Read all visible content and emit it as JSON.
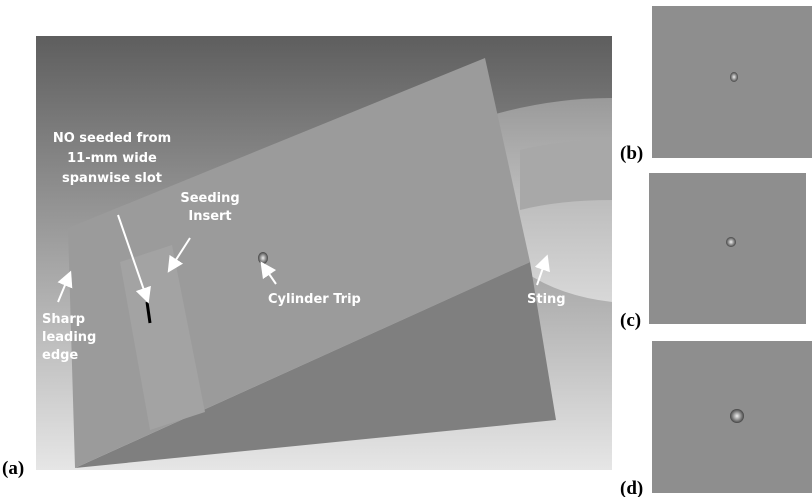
{
  "annotations": {
    "slot": [
      "NO seeded from",
      "11-mm wide",
      "spanwise slot"
    ],
    "insert": [
      "Seeding",
      "Insert"
    ],
    "trip": [
      "Cylinder Trip"
    ],
    "sting": [
      "Sting"
    ],
    "edge": [
      "Sharp",
      "leading",
      "edge"
    ]
  },
  "panel_labels": [
    "(a)",
    "(b)",
    "(c)",
    "(d)"
  ]
}
